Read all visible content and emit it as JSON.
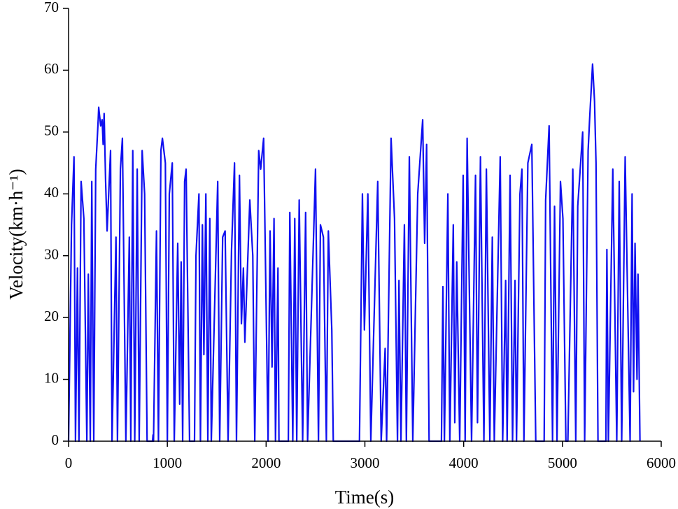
{
  "chart_data": {
    "type": "line",
    "xlabel": "Time(s)",
    "ylabel": "Velocity(km·h⁻¹)",
    "xlim": [
      0,
      6000
    ],
    "xticks": [
      0,
      1000,
      2000,
      3000,
      4000,
      5000,
      6000
    ],
    "ylim": [
      0,
      70
    ],
    "yticks": [
      0,
      10,
      20,
      30,
      40,
      50,
      60,
      70
    ],
    "grid": false,
    "series": [
      {
        "name": null,
        "color": "#1010f0",
        "x": [
          0,
          30,
          55,
          70,
          90,
          105,
          127,
          155,
          185,
          200,
          220,
          235,
          255,
          275,
          300,
          305,
          325,
          340,
          350,
          360,
          375,
          390,
          425,
          440,
          480,
          495,
          525,
          545,
          580,
          615,
          630,
          650,
          670,
          695,
          715,
          745,
          770,
          795,
          850,
          855,
          860,
          890,
          910,
          935,
          950,
          980,
          1000,
          1020,
          1050,
          1070,
          1105,
          1125,
          1140,
          1155,
          1175,
          1190,
          1225,
          1275,
          1290,
          1320,
          1335,
          1355,
          1370,
          1390,
          1410,
          1430,
          1445,
          1510,
          1530,
          1560,
          1585,
          1615,
          1650,
          1680,
          1700,
          1730,
          1750,
          1770,
          1785,
          1835,
          1865,
          1885,
          1925,
          1945,
          1975,
          2020,
          2040,
          2060,
          2080,
          2095,
          2120,
          2130,
          2225,
          2240,
          2270,
          2290,
          2310,
          2335,
          2370,
          2400,
          2420,
          2500,
          2530,
          2550,
          2580,
          2610,
          2630,
          2665,
          2680,
          2945,
          2975,
          2995,
          3030,
          3060,
          3130,
          3165,
          3205,
          3220,
          3265,
          3300,
          3330,
          3345,
          3365,
          3400,
          3420,
          3450,
          3485,
          3535,
          3585,
          3605,
          3625,
          3650,
          3775,
          3790,
          3805,
          3840,
          3860,
          3895,
          3910,
          3930,
          3960,
          3995,
          4015,
          4035,
          4080,
          4120,
          4140,
          4170,
          4205,
          4230,
          4265,
          4290,
          4310,
          4370,
          4395,
          4425,
          4440,
          4470,
          4495,
          4520,
          4535,
          4570,
          4590,
          4610,
          4650,
          4690,
          4730,
          4815,
          4830,
          4865,
          4900,
          4920,
          4945,
          4980,
          5005,
          5035,
          5055,
          5105,
          5135,
          5155,
          5205,
          5225,
          5260,
          5275,
          5305,
          5325,
          5340,
          5360,
          5440,
          5450,
          5465,
          5510,
          5550,
          5575,
          5600,
          5635,
          5685,
          5705,
          5720,
          5735,
          5755,
          5765,
          5785
        ],
        "values": [
          0,
          35,
          46,
          0,
          28,
          0,
          42,
          36,
          0,
          27,
          0,
          42,
          0,
          44,
          52,
          54,
          51,
          52,
          48,
          53,
          42,
          34,
          47,
          0,
          33,
          0,
          44,
          49,
          0,
          33,
          0,
          47,
          0,
          44,
          0,
          47,
          40,
          0,
          0,
          1,
          0,
          34,
          0,
          47,
          49,
          45,
          0,
          40,
          45,
          0,
          32,
          6,
          29,
          0,
          42,
          44,
          0,
          0,
          30,
          40,
          0,
          35,
          14,
          40,
          0,
          36,
          0,
          42,
          0,
          33,
          34,
          0,
          31,
          45,
          0,
          43,
          19,
          28,
          16,
          39,
          30,
          0,
          47,
          44,
          49,
          0,
          34,
          12,
          36,
          0,
          28,
          0,
          0,
          37,
          0,
          36,
          0,
          39,
          0,
          37,
          0,
          44,
          0,
          35,
          33,
          0,
          34,
          18,
          0,
          0,
          40,
          18,
          40,
          0,
          42,
          0,
          15,
          0,
          49,
          36,
          0,
          26,
          0,
          35,
          0,
          46,
          0,
          40,
          52,
          32,
          48,
          0,
          0,
          25,
          0,
          40,
          0,
          35,
          3,
          29,
          0,
          43,
          0,
          49,
          0,
          43,
          3,
          46,
          0,
          44,
          0,
          33,
          0,
          46,
          0,
          26,
          0,
          43,
          0,
          26,
          0,
          40,
          44,
          0,
          45,
          48,
          0,
          0,
          39,
          51,
          0,
          38,
          0,
          42,
          36,
          0,
          0,
          44,
          0,
          38,
          50,
          0,
          47,
          52,
          61,
          55,
          45,
          0,
          0,
          31,
          0,
          44,
          0,
          42,
          0,
          46,
          0,
          40,
          8,
          32,
          10,
          27,
          0
        ]
      }
    ]
  }
}
